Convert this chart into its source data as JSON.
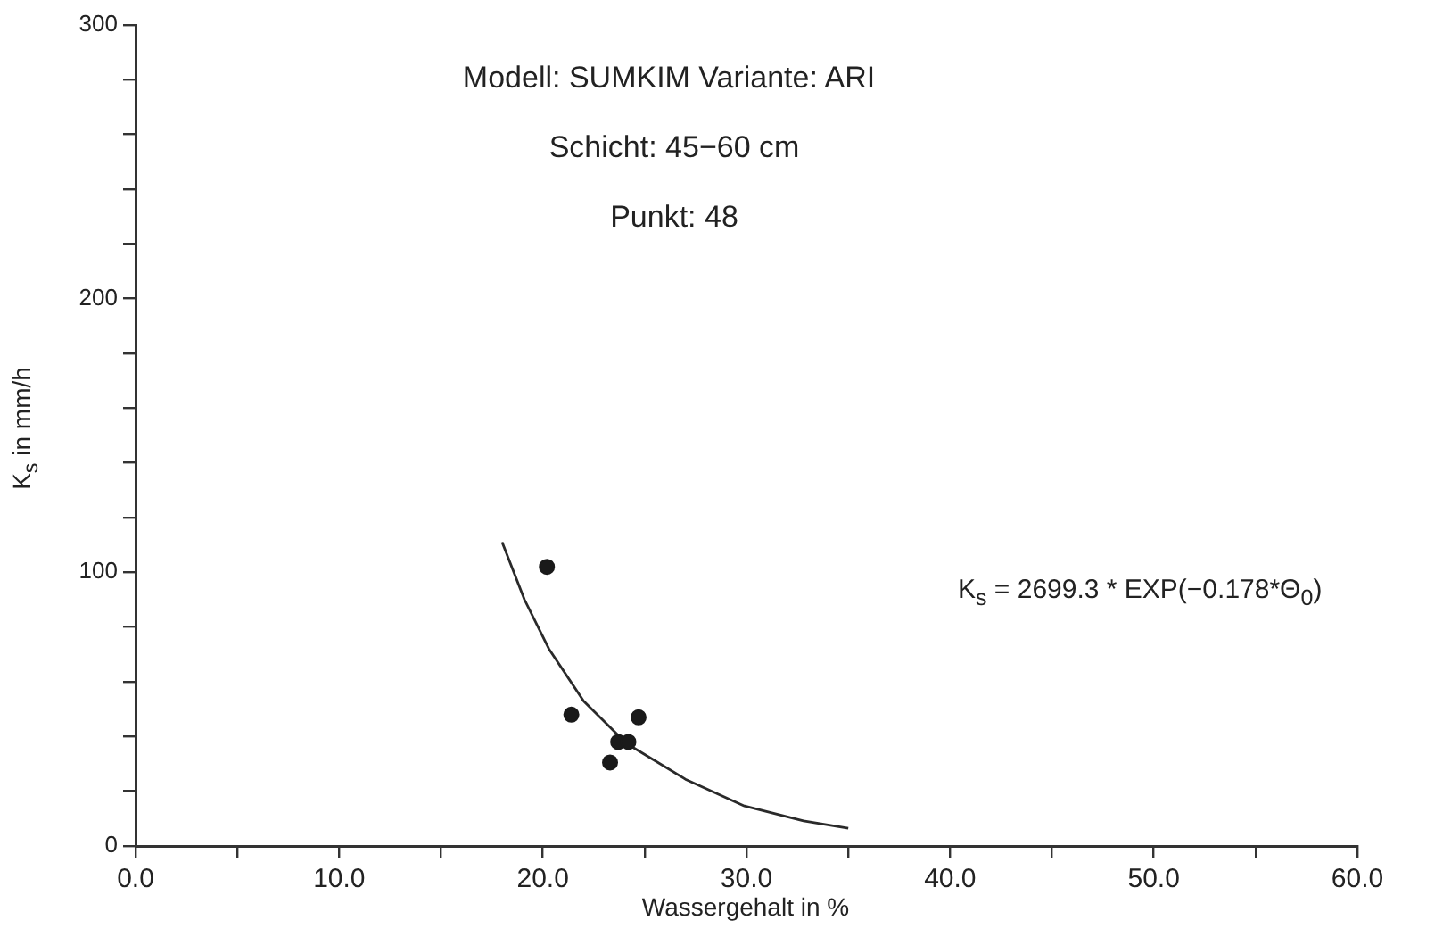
{
  "chart_data": {
    "type": "scatter",
    "title": "Modell: SUMKIM   Variante: ARI",
    "subtitle": "Schicht: 45−60 cm",
    "xlabel": "Wassergehalt in %",
    "ylabel": "K$_{s}$ in mm/h",
    "annotations": [
      "Punkt: 48",
      "K$_{s}$ = 2699.3 * EXP(−0.178*Θ$_{0}$)"
    ],
    "series": [
      {
        "type": "scatter",
        "color": "#1a1a1a",
        "marker": "circle",
        "x": [
          20.2,
          21.4,
          24.7,
          23.7,
          24.2,
          23.3
        ],
        "values": [
          102,
          48,
          47,
          38,
          38,
          30.5
        ]
      },
      {
        "type": "line",
        "color": "#2a2a2a",
        "marker": "none",
        "line_style": "solid",
        "x": [
          18.0,
          19.1,
          20.3,
          22.0,
          24.1,
          27.0,
          29.9,
          32.8,
          35.0
        ],
        "values": [
          111,
          90,
          72,
          53,
          37.5,
          24.4,
          14.6,
          9.2,
          6.5
        ]
      }
    ],
    "xlim": [
      0,
      60
    ],
    "xticks": [
      {
        "value": 0,
        "label": "0.0"
      },
      {
        "value": 5,
        "label": null
      },
      {
        "value": 10,
        "label": "10.0"
      },
      {
        "value": 15,
        "label": null
      },
      {
        "value": 20,
        "label": "20.0"
      },
      {
        "value": 25,
        "label": null
      },
      {
        "value": 30,
        "label": "30.0"
      },
      {
        "value": 35,
        "label": null
      },
      {
        "value": 40,
        "label": "40.0"
      },
      {
        "value": 45,
        "label": null
      },
      {
        "value": 50,
        "label": "50.0"
      },
      {
        "value": 55,
        "label": null
      },
      {
        "value": 60,
        "label": "60.0"
      }
    ],
    "ylim": [
      0,
      300
    ],
    "yticks": [
      0,
      {
        "value": 20,
        "label": null
      },
      {
        "value": 40,
        "label": null
      },
      {
        "value": 60,
        "label": null
      },
      {
        "value": 80,
        "label": null
      },
      100,
      {
        "value": 120,
        "label": null
      },
      {
        "value": 140,
        "label": null
      },
      {
        "value": 160,
        "label": null
      },
      {
        "value": 180,
        "label": null
      },
      200,
      {
        "value": 220,
        "label": null
      },
      {
        "value": 240,
        "label": null
      },
      {
        "value": 260,
        "label": null
      },
      {
        "value": 280,
        "label": null
      },
      300
    ],
    "grid": false,
    "legend": false
  }
}
